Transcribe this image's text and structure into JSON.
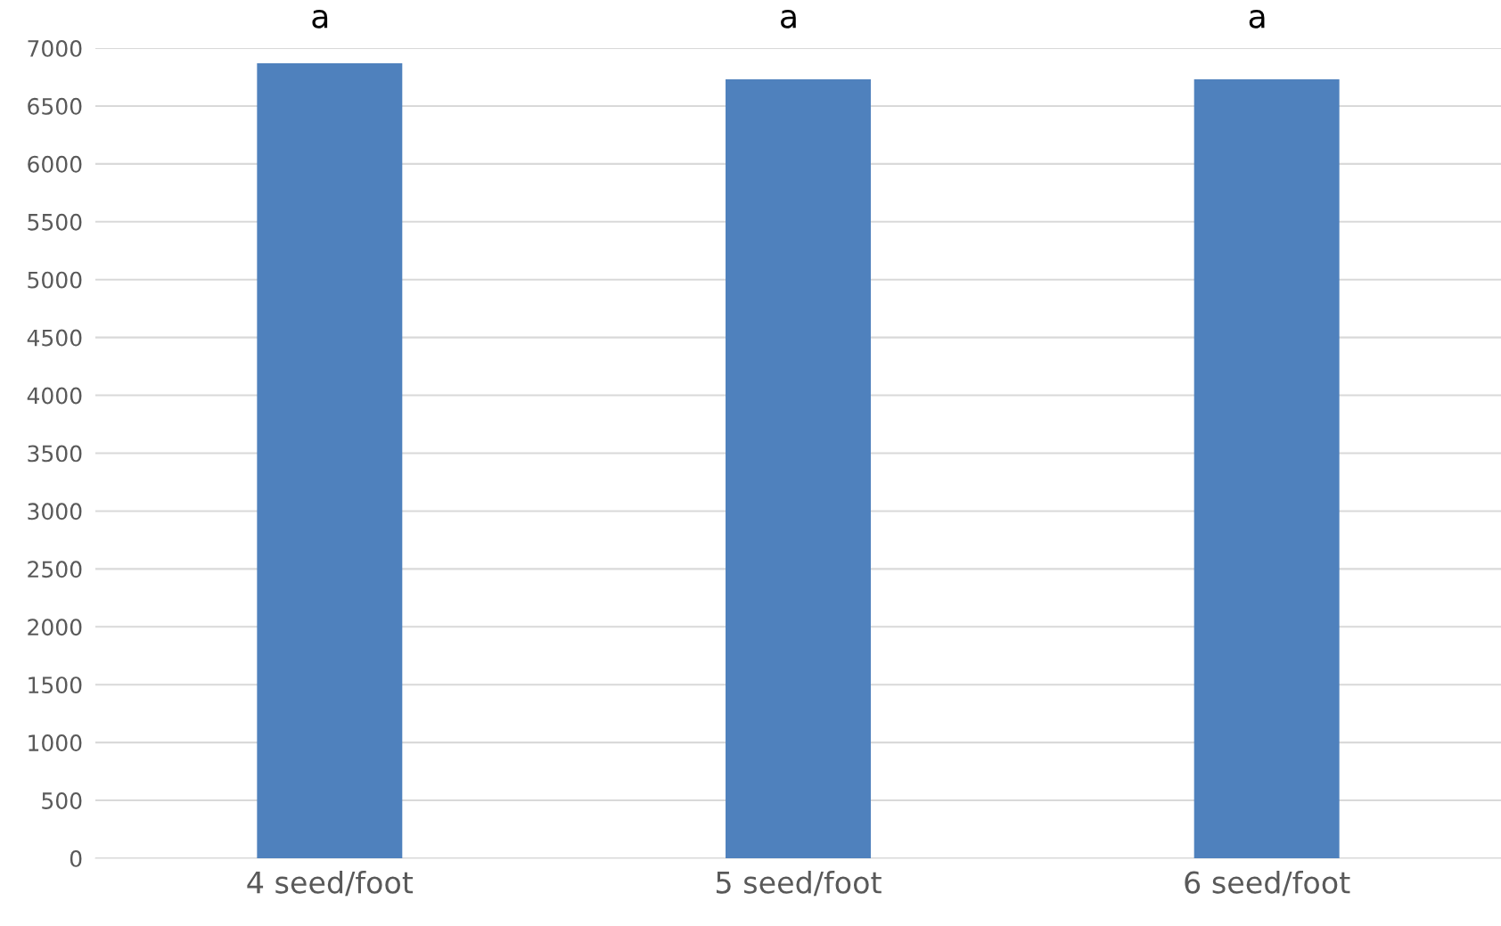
{
  "chart_data": {
    "type": "bar",
    "categories": [
      "4 seed/foot",
      "5 seed/foot",
      "6 seed/foot"
    ],
    "values": [
      6870,
      6730,
      6730
    ],
    "color": "#4f81bd",
    "ylim": [
      0,
      7000
    ],
    "yticks": [
      0,
      500,
      1000,
      1500,
      2000,
      2500,
      3000,
      3500,
      4000,
      4500,
      5000,
      5500,
      6000,
      6500,
      7000
    ],
    "grid": "y",
    "annotations": [
      "a",
      "a",
      "a"
    ]
  }
}
